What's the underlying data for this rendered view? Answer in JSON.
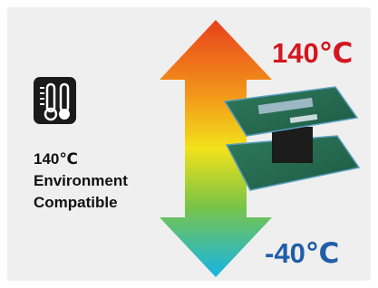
{
  "labels": {
    "max_temp": "140℃",
    "min_temp": "-40℃"
  },
  "feature": {
    "lines": [
      "140℃",
      "Environment",
      "Compatible"
    ]
  }
}
